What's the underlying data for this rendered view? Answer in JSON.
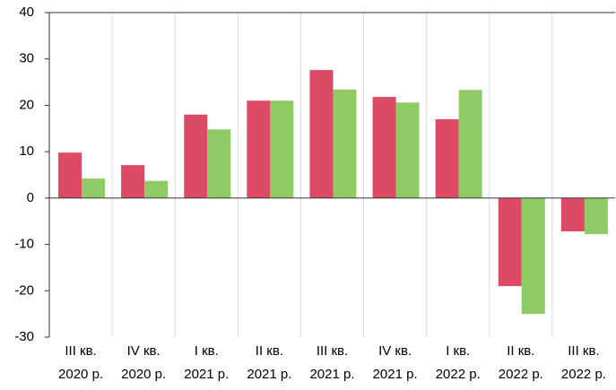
{
  "chart_data": {
    "type": "bar",
    "categories": [
      [
        "III кв.",
        "2020 р."
      ],
      [
        "IV кв.",
        "2020 р."
      ],
      [
        "I кв.",
        "2021 р."
      ],
      [
        "II кв.",
        "2021 р."
      ],
      [
        "III кв.",
        "2021 р."
      ],
      [
        "IV кв.",
        "2021 р."
      ],
      [
        "I кв.",
        "2022 р."
      ],
      [
        "II кв.",
        "2022 р."
      ],
      [
        "III кв.",
        "2022 р."
      ]
    ],
    "series": [
      {
        "color": "#dc4a66",
        "values": [
          9.8,
          7.1,
          18,
          21,
          27.6,
          21.8,
          17,
          -19,
          -7.2
        ]
      },
      {
        "color": "#8fcb64",
        "values": [
          4.2,
          3.7,
          14.8,
          21,
          23.4,
          20.6,
          23.3,
          -25,
          -7.8
        ]
      }
    ],
    "ylim": [
      -30,
      40
    ],
    "yticks": [
      -30,
      -20,
      -10,
      0,
      10,
      20,
      30,
      40
    ]
  }
}
